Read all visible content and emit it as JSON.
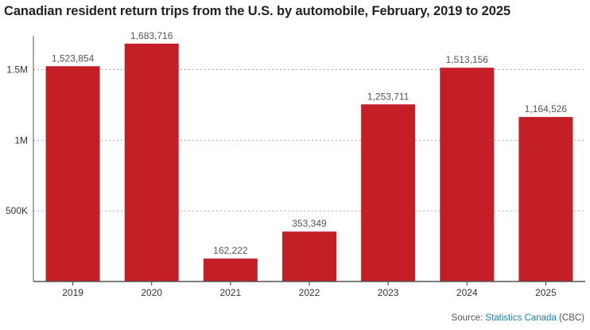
{
  "chart_data": {
    "type": "bar",
    "title": "Canadian resident return trips from the U.S. by automobile, February, 2019 to 2025",
    "xlabel": "",
    "ylabel": "",
    "categories": [
      "2019",
      "2020",
      "2021",
      "2022",
      "2023",
      "2024",
      "2025"
    ],
    "values": [
      1523854,
      1683716,
      162222,
      353349,
      1253711,
      1513156,
      1164526
    ],
    "value_labels": [
      "1,523,854",
      "1,683,716",
      "162,222",
      "353,349",
      "1,253,711",
      "1,513,156",
      "1,164,526"
    ],
    "ylim": [
      0,
      1700000
    ],
    "yticks": [
      500000,
      1000000,
      1500000
    ],
    "ytick_labels": [
      "500K",
      "1M",
      "1.5M"
    ],
    "grid": true,
    "bar_color": "#c41f26"
  },
  "source": {
    "prefix": "Source: ",
    "name": "Statistics Canada",
    "suffix": " (CBC)"
  }
}
